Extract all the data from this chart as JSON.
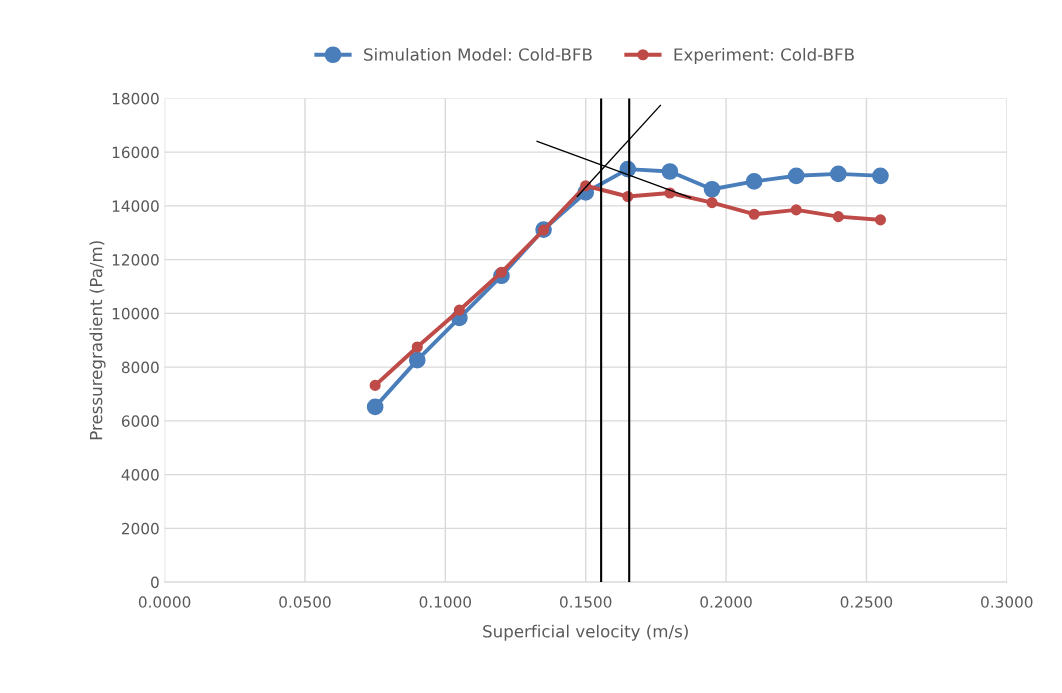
{
  "chart_data": {
    "type": "line",
    "xlabel": "Superficial velocity (m/s)",
    "ylabel": "Pressuregradient (Pa/m)",
    "x": [
      0.075,
      0.09,
      0.105,
      0.12,
      0.135,
      0.15,
      0.165,
      0.18,
      0.195,
      0.21,
      0.225,
      0.24,
      0.255
    ],
    "series": [
      {
        "name": "Simulation Model: Cold-BFB",
        "color": "#4a7ebb",
        "marker": "circle",
        "values": [
          6520,
          8260,
          9830,
          11400,
          13120,
          14500,
          15370,
          15280,
          14620,
          14910,
          15120,
          15190,
          15120
        ]
      },
      {
        "name": "Experiment: Cold-BFB",
        "color": "#be4b48",
        "marker": "circle",
        "values": [
          7320,
          8750,
          10120,
          11530,
          13100,
          14750,
          14350,
          14480,
          14120,
          13690,
          13850,
          13600,
          13480
        ]
      },
      {
        "color": "#000000",
        "marker": "none",
        "x": [
          0.1327,
          0.1873
        ],
        "values": [
          16400,
          14310
        ]
      },
      {
        "color": "#000000",
        "marker": "none",
        "x": [
          0.147,
          0.1766
        ],
        "values": [
          14350,
          17740
        ]
      }
    ],
    "ref_lines": [
      {
        "axis": "x",
        "value": 0.1555,
        "color": "#000000"
      },
      {
        "axis": "x",
        "value": 0.1655,
        "color": "#000000"
      }
    ],
    "xlim": [
      0,
      0.3
    ],
    "xticks": [
      {
        "value": 0,
        "label": "0.0000"
      },
      {
        "value": 0.05,
        "label": "0.0500"
      },
      {
        "value": 0.1,
        "label": "0.1000"
      },
      {
        "value": 0.15,
        "label": "0.1500"
      },
      {
        "value": 0.2,
        "label": "0.2000"
      },
      {
        "value": 0.25,
        "label": "0.2500"
      },
      {
        "value": 0.3,
        "label": "0.3000"
      }
    ],
    "ylim": [
      0,
      18000
    ],
    "yticks": [
      0,
      2000,
      4000,
      6000,
      8000,
      10000,
      12000,
      14000,
      16000,
      18000
    ],
    "grid": true,
    "legend": "top",
    "line_style": "solid"
  }
}
